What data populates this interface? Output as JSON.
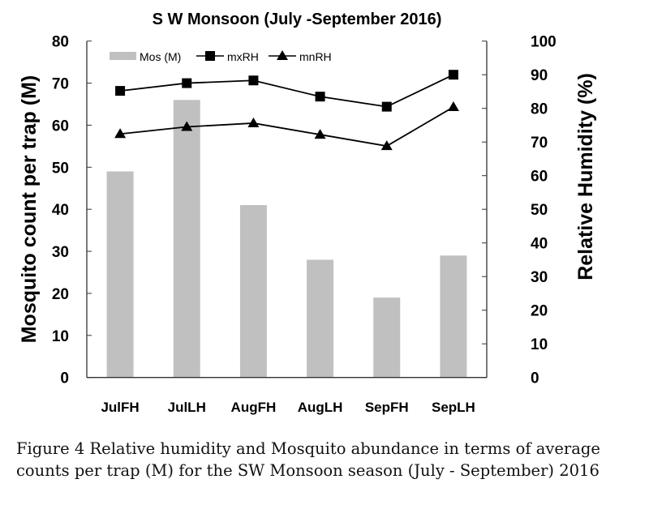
{
  "chart_data": {
    "type": "bar",
    "title": "S W Monsoon (July -September 2016)",
    "categories": [
      "JulFH",
      "JulLH",
      "AugFH",
      "AugLH",
      "SepFH",
      "SepLH"
    ],
    "ylabel": "Mosquito count per trap (M)",
    "y2label": "Relative Humidity  (%)",
    "ylim": [
      0,
      80
    ],
    "y2lim": [
      0,
      100
    ],
    "yticks": [
      0,
      10,
      20,
      30,
      40,
      50,
      60,
      70,
      80
    ],
    "y2ticks": [
      0,
      10,
      20,
      30,
      40,
      50,
      60,
      70,
      80,
      90,
      100
    ],
    "legend_position": "top-left",
    "series": [
      {
        "name": "Mos (M)",
        "type": "bar",
        "axis": "left",
        "color": "#c0c0c0",
        "values": [
          49,
          66,
          41,
          28,
          19,
          29
        ]
      },
      {
        "name": "mxRH",
        "type": "line",
        "axis": "right",
        "marker": "square",
        "color": "#000000",
        "values": [
          85.2,
          87.5,
          88.3,
          83.5,
          80.5,
          90.0
        ]
      },
      {
        "name": "mnRH",
        "type": "line",
        "axis": "right",
        "marker": "triangle",
        "color": "#000000",
        "values": [
          72.4,
          74.5,
          75.6,
          72.2,
          68.8,
          80.4
        ]
      }
    ]
  },
  "caption": "Figure 4 Relative humidity and Mosquito abundance in terms of average counts per trap (M) for the SW Monsoon season (July - September) 2016"
}
